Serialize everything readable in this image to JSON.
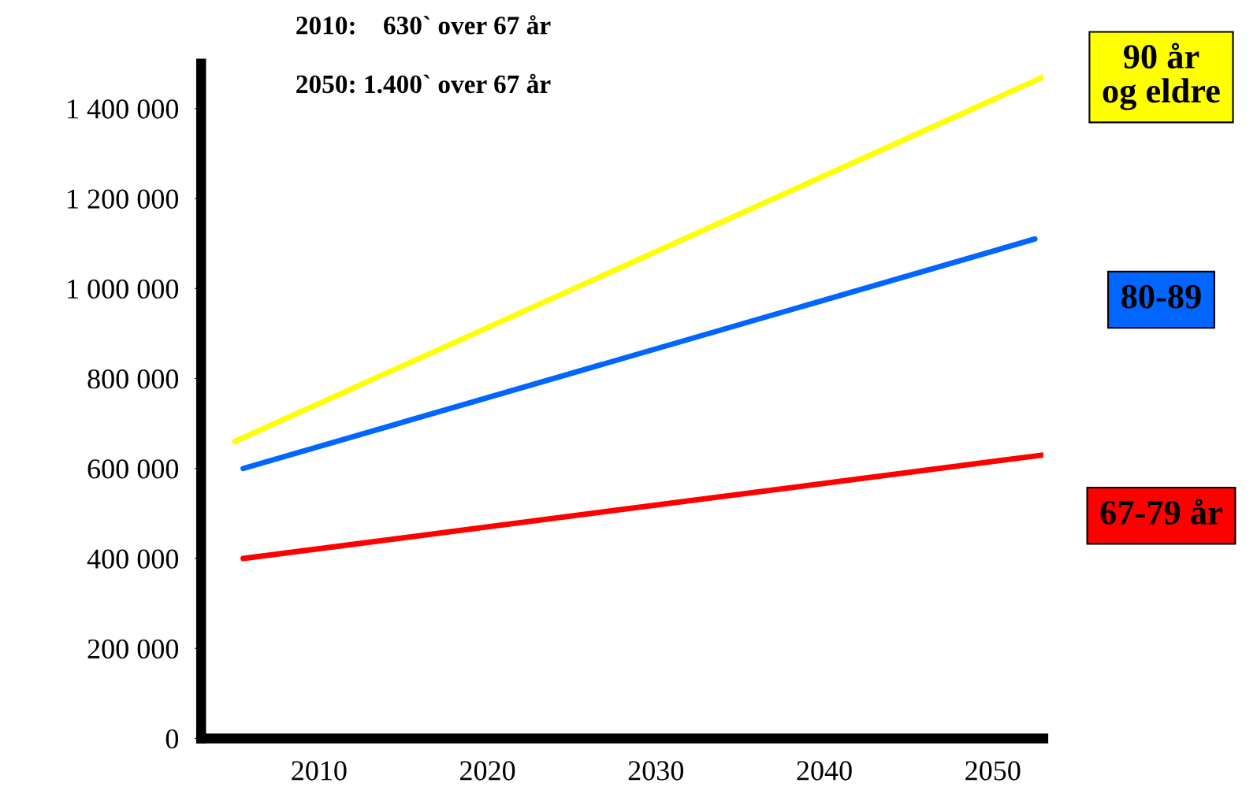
{
  "chart_data": {
    "type": "line",
    "annotations": [
      "2010:    630` over 67 år",
      "2050: 1.400` over 67 år"
    ],
    "series": [
      {
        "name": "90 år\nog eldre",
        "color": "#ffff00",
        "x": [
          2005,
          2053
        ],
        "values": [
          660000,
          1470000
        ]
      },
      {
        "name": "80-89",
        "color": "#0066ff",
        "x": [
          2005.5,
          2052.5
        ],
        "values": [
          600000,
          1110000
        ]
      },
      {
        "name": "67-79 år",
        "color": "#ff0000",
        "x": [
          2005.5,
          2053
        ],
        "values": [
          400000,
          630000
        ]
      }
    ],
    "xlim": [
      2003,
      2053
    ],
    "ylim": [
      0,
      1500000
    ],
    "xticks": [
      2010,
      2020,
      2030,
      2040,
      2050
    ],
    "yticks": [
      0,
      {
        "value": 200000,
        "label": "200 000"
      },
      {
        "value": 400000,
        "label": "400 000"
      },
      {
        "value": 600000,
        "label": "600 000"
      },
      {
        "value": 800000,
        "label": "800 000"
      },
      {
        "value": 1000000,
        "label": "1 000 000"
      },
      {
        "value": 1200000,
        "label": "1 200 000"
      },
      {
        "value": 1400000,
        "label": "1 400 000"
      }
    ],
    "grid": false,
    "legend": false,
    "marker": "none",
    "line_style": "solid"
  }
}
